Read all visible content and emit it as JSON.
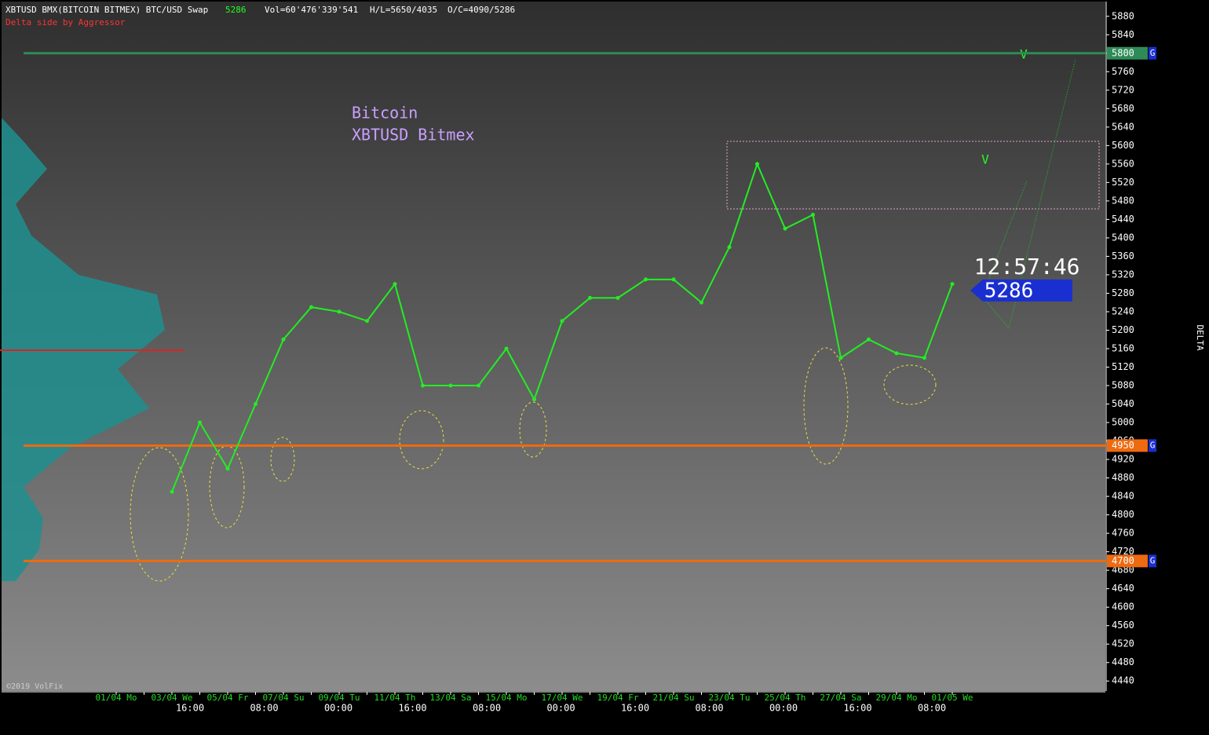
{
  "header": {
    "symbol": "XBTUSD BMX(BITCOIN BITMEX) BTC/USD Swap",
    "last": 5286,
    "volume": "Vol=60'476'339'541",
    "high_low": "H/L=5650/4035",
    "open_close": "O/C=4090/5286",
    "subtitle": "Delta side by Aggressor"
  },
  "chart_data": {
    "type": "line",
    "annotations": [
      "Bitcoin",
      "XBTUSD Bitmex"
    ],
    "marks": [
      "V",
      "V"
    ],
    "categories": [
      "01/04 Mo",
      null,
      "03/04 We",
      null,
      "05/04 Fr",
      null,
      "07/04 Su",
      null,
      "09/04 Tu",
      null,
      "11/04 Th",
      null,
      "13/04 Sa",
      null,
      "15/04 Mo",
      null,
      "17/04 We",
      null,
      "19/04 Fr",
      null,
      "21/04 Su",
      null,
      "23/04 Tu",
      null,
      "25/04 Th",
      null,
      "27/04 Sa",
      null,
      "29/04 Mo",
      null,
      "01/05 We"
    ],
    "time_labels": [
      "16:00",
      "08:00",
      "00:00",
      "16:00",
      "08:00",
      "00:00",
      "16:00",
      "08:00",
      "00:00",
      "16:00",
      "08:00"
    ],
    "values": [
      null,
      null,
      4850,
      5000,
      4900,
      5040,
      5180,
      5250,
      5240,
      5220,
      5300,
      5080,
      5080,
      5080,
      5160,
      5050,
      5220,
      5270,
      5270,
      5310,
      5310,
      5260,
      5380,
      5560,
      5420,
      5450,
      5140,
      5180,
      5150,
      5140,
      5300
    ],
    "color": "#22ee22",
    "ylim": [
      4420,
      5900
    ],
    "yticks": [
      4440,
      4480,
      4520,
      4560,
      4600,
      4640,
      4680,
      4720,
      4760,
      4800,
      4840,
      4880,
      4920,
      4960,
      5000,
      5040,
      5080,
      5120,
      5160,
      5200,
      5240,
      5280,
      5320,
      5360,
      5400,
      5440,
      5480,
      5520,
      5560,
      5600,
      5640,
      5680,
      5720,
      5760,
      5800,
      5840,
      5880
    ],
    "levels": [
      {
        "value": 5800,
        "color": "#2e8b57"
      },
      {
        "value": 4950,
        "color": "#ee6a10"
      },
      {
        "value": 4700,
        "color": "#ee6a10"
      }
    ],
    "level_tag": "G",
    "current_price": 5286,
    "clock": "12:57:46",
    "delta_label": "DELTA",
    "copyright": "©2019 VolFix"
  }
}
